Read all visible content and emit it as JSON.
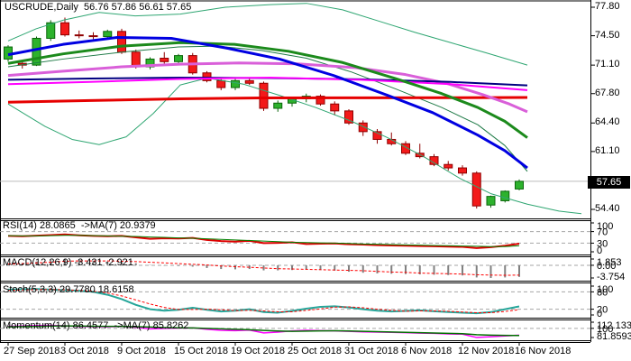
{
  "header": {
    "symbol_period": "USCRUDE,Daily",
    "ohlc_text": "56.76 57.86 56.61 57.65"
  },
  "axis": {
    "price_labels": [
      "77.80",
      "74.50",
      "71.10",
      "67.80",
      "64.40",
      "61.10",
      "54.40"
    ],
    "current_price_label": "57.65",
    "date_labels": [
      "27 Sep 2018",
      "3 Oct 2018",
      "9 Oct 2018",
      "15 Oct 2018",
      "19 Oct 2018",
      "25 Oct 2018",
      "31 Oct 2018",
      "6 Nov 2018",
      "12 Nov 2018",
      "16 Nov 2018"
    ]
  },
  "colors": {
    "candle_up_fill": "#2DB22D",
    "candle_up_stroke": "#0B660B",
    "candle_down_fill": "#F31A1A",
    "candle_down_stroke": "#8F0000",
    "grid_dash": "#A6A6A6",
    "current_price_line": "#BBBBBB",
    "border": "#000000",
    "tag_bg": "#000000",
    "tag_fg": "#FFFFFF"
  },
  "chart_data": {
    "type": "candlestick-with-indicators",
    "symbol": "USCRUDE",
    "timeframe": "Daily",
    "last_ohlc": {
      "open": 56.76,
      "high": 57.86,
      "low": 56.61,
      "close": 57.65
    },
    "current_price": 57.65,
    "y_axis_values": [
      77.8,
      74.5,
      71.1,
      67.8,
      64.4,
      61.1,
      54.4
    ],
    "candles": [
      [
        71.8,
        73.4,
        71.5,
        73.2
      ],
      [
        71.3,
        71.7,
        70.7,
        71.1
      ],
      [
        71.1,
        74.4,
        71.0,
        74.2
      ],
      [
        74.2,
        76.3,
        73.9,
        76.0
      ],
      [
        76.0,
        76.6,
        74.4,
        74.6
      ],
      [
        74.6,
        75.1,
        74.2,
        74.5
      ],
      [
        74.5,
        74.9,
        74.1,
        74.4
      ],
      [
        74.4,
        75.2,
        74.1,
        75.0
      ],
      [
        75.0,
        75.3,
        72.4,
        72.6
      ],
      [
        72.6,
        72.9,
        70.7,
        70.9
      ],
      [
        70.9,
        72.0,
        70.6,
        71.8
      ],
      [
        71.9,
        72.6,
        71.2,
        71.5
      ],
      [
        71.5,
        72.4,
        71.2,
        72.2
      ],
      [
        72.2,
        72.5,
        70.0,
        70.2
      ],
      [
        70.2,
        70.4,
        69.1,
        69.3
      ],
      [
        69.3,
        69.6,
        68.2,
        68.5
      ],
      [
        68.5,
        69.5,
        68.2,
        69.3
      ],
      [
        69.3,
        69.7,
        68.8,
        69.0
      ],
      [
        69.0,
        69.2,
        65.8,
        66.1
      ],
      [
        66.1,
        67.0,
        65.7,
        66.7
      ],
      [
        66.7,
        67.4,
        66.3,
        67.2
      ],
      [
        67.2,
        67.8,
        66.8,
        67.5
      ],
      [
        67.5,
        67.7,
        66.4,
        66.6
      ],
      [
        66.6,
        66.9,
        65.3,
        65.8
      ],
      [
        65.8,
        66.0,
        64.2,
        64.4
      ],
      [
        64.4,
        64.7,
        62.9,
        63.4
      ],
      [
        63.4,
        63.7,
        62.0,
        62.5
      ],
      [
        62.5,
        63.3,
        61.8,
        62.0
      ],
      [
        62.0,
        62.3,
        60.7,
        60.9
      ],
      [
        60.9,
        62.0,
        60.3,
        60.5
      ],
      [
        60.5,
        60.8,
        59.4,
        59.6
      ],
      [
        59.6,
        60.0,
        58.9,
        59.2
      ],
      [
        59.2,
        59.5,
        58.3,
        58.6
      ],
      [
        58.6,
        58.8,
        54.5,
        54.8
      ],
      [
        54.9,
        56.0,
        54.6,
        55.9
      ],
      [
        55.4,
        56.6,
        55.2,
        56.5
      ],
      [
        56.76,
        57.86,
        56.61,
        57.65
      ]
    ],
    "overlays": [
      {
        "name": "band-upper",
        "color": "#2FA672",
        "width": 1,
        "points": [
          [
            9,
            73.9
          ],
          [
            40,
            75.3
          ],
          [
            70,
            76.3
          ],
          [
            110,
            77.2
          ],
          [
            150,
            76.8
          ],
          [
            200,
            77.0
          ],
          [
            250,
            77.8
          ],
          [
            300,
            78.1
          ],
          [
            340,
            78.25
          ],
          [
            380,
            77.5
          ],
          [
            420,
            76.2
          ],
          [
            460,
            74.9
          ],
          [
            500,
            73.7
          ],
          [
            540,
            72.5
          ],
          [
            585,
            71.1
          ]
        ]
      },
      {
        "name": "band-lower",
        "color": "#2FA672",
        "width": 1,
        "points": [
          [
            9,
            66.6
          ],
          [
            50,
            64.0
          ],
          [
            80,
            62.5
          ],
          [
            110,
            61.9
          ],
          [
            140,
            62.8
          ],
          [
            170,
            65.5
          ],
          [
            200,
            68.8
          ],
          [
            230,
            69.6
          ],
          [
            270,
            68.9
          ],
          [
            310,
            67.6
          ],
          [
            350,
            66.2
          ],
          [
            390,
            64.6
          ],
          [
            430,
            62.7
          ],
          [
            470,
            60.5
          ],
          [
            510,
            58.0
          ],
          [
            545,
            56.2
          ],
          [
            585,
            55.0
          ],
          [
            620,
            54.2
          ],
          [
            645,
            53.9
          ]
        ]
      },
      {
        "name": "band-middle",
        "color": "#1E7A46",
        "width": 1,
        "points": [
          [
            9,
            70.9
          ],
          [
            70,
            71.8
          ],
          [
            135,
            72.6
          ],
          [
            198,
            73.2
          ],
          [
            240,
            73.3
          ],
          [
            290,
            72.8
          ],
          [
            340,
            71.9
          ],
          [
            390,
            70.3
          ],
          [
            440,
            68.3
          ],
          [
            490,
            66.2
          ],
          [
            530,
            64.2
          ],
          [
            560,
            61.8
          ],
          [
            585,
            58.8
          ]
        ]
      },
      {
        "name": "ma-red",
        "color": "#E60000",
        "width": 3,
        "points": [
          [
            9,
            66.8
          ],
          [
            100,
            67.0
          ],
          [
            200,
            67.2
          ],
          [
            290,
            67.3
          ],
          [
            400,
            67.32
          ],
          [
            500,
            67.33
          ],
          [
            585,
            67.35
          ]
        ]
      },
      {
        "name": "ma-orchid",
        "color": "#D95FD9",
        "width": 3,
        "points": [
          [
            9,
            69.9
          ],
          [
            70,
            70.4
          ],
          [
            135,
            70.9
          ],
          [
            200,
            71.2
          ],
          [
            265,
            71.35
          ],
          [
            330,
            71.25
          ],
          [
            395,
            70.8
          ],
          [
            450,
            70.0
          ],
          [
            495,
            69.0
          ],
          [
            535,
            67.7
          ],
          [
            565,
            66.6
          ],
          [
            585,
            65.7
          ]
        ]
      },
      {
        "name": "ma-navy",
        "color": "#000080",
        "width": 2,
        "points": [
          [
            9,
            69.4
          ],
          [
            100,
            69.55
          ],
          [
            200,
            69.65
          ],
          [
            300,
            69.6
          ],
          [
            400,
            69.45
          ],
          [
            500,
            69.15
          ],
          [
            585,
            68.75
          ]
        ]
      },
      {
        "name": "ma-magenta",
        "color": "#FF00FF",
        "width": 2,
        "points": [
          [
            9,
            68.9
          ],
          [
            100,
            69.15
          ],
          [
            200,
            69.5
          ],
          [
            300,
            69.65
          ],
          [
            400,
            69.4
          ],
          [
            500,
            68.9
          ],
          [
            585,
            68.2
          ]
        ]
      },
      {
        "name": "ma-green",
        "color": "#1C8A1C",
        "width": 3,
        "points": [
          [
            9,
            71.3
          ],
          [
            70,
            72.4
          ],
          [
            135,
            73.3
          ],
          [
            200,
            73.7
          ],
          [
            260,
            73.5
          ],
          [
            320,
            72.7
          ],
          [
            380,
            71.4
          ],
          [
            440,
            69.5
          ],
          [
            490,
            67.8
          ],
          [
            530,
            66.2
          ],
          [
            560,
            64.6
          ],
          [
            585,
            62.7
          ]
        ]
      },
      {
        "name": "ma-blue",
        "color": "#0000E1",
        "width": 3,
        "points": [
          [
            9,
            72.3
          ],
          [
            70,
            73.5
          ],
          [
            130,
            74.3
          ],
          [
            190,
            74.2
          ],
          [
            250,
            73.1
          ],
          [
            310,
            71.8
          ],
          [
            370,
            69.9
          ],
          [
            430,
            67.6
          ],
          [
            480,
            65.6
          ],
          [
            530,
            63.0
          ],
          [
            560,
            61.2
          ],
          [
            585,
            59.2
          ]
        ]
      }
    ],
    "panels": [
      {
        "id": "rsi",
        "label": "RSI(14) 28.0865  ->MA(7) 20.9379",
        "range": [
          0,
          100
        ],
        "levels": [
          70,
          30
        ],
        "axis_labels": [
          100,
          70,
          30,
          0
        ],
        "series": [
          {
            "name": "rsi-main",
            "color": "#DD0000",
            "width": 2,
            "dash": null,
            "values": [
              55,
              54,
              56,
              58,
              60,
              57,
              55,
              54,
              55,
              50,
              45,
              47,
              46,
              48,
              41,
              37,
              35,
              38,
              30,
              31,
              33,
              27,
              28,
              29,
              26,
              25,
              23,
              22,
              21,
              20,
              19,
              18,
              17,
              13,
              16,
              21,
              28
            ]
          },
          {
            "name": "rsi-ma",
            "color": "#008000",
            "width": 1,
            "dash": null,
            "values": [
              56,
              55,
              55,
              56,
              57,
              57,
              56,
              55,
              54,
              53,
              51,
              50,
              48,
              47,
              45,
              43,
              41,
              39,
              37,
              35,
              33,
              32,
              31,
              30,
              29,
              27,
              26,
              25,
              24,
              23,
              22,
              21,
              20,
              19,
              18,
              18,
              21
            ]
          }
        ]
      },
      {
        "id": "macd",
        "label": "MACD(12,26,9) -3.431 -2.921",
        "range": [
          -3.754,
          1.853
        ],
        "levels": [
          0
        ],
        "axis_labels": [
          1.853,
          0.0,
          -3.754
        ],
        "histogram": {
          "color": "#808080",
          "values": [
            0.5,
            0.7,
            1.1,
            1.5,
            1.85,
            1.6,
            1.3,
            1.1,
            1.0,
            0.6,
            0.1,
            -0.1,
            -0.2,
            -0.4,
            -0.8,
            -1.1,
            -1.2,
            -1.1,
            -1.5,
            -1.5,
            -1.4,
            -1.3,
            -1.4,
            -1.6,
            -1.9,
            -2.2,
            -2.4,
            -2.5,
            -2.6,
            -2.7,
            -2.8,
            -2.9,
            -3.0,
            -3.6,
            -3.75,
            -3.6,
            -3.43
          ]
        },
        "series": [
          {
            "name": "macd-signal",
            "color": "#FF0000",
            "width": 1,
            "dash": "3 2",
            "values": [
              0.4,
              0.5,
              0.7,
              0.9,
              1.2,
              1.3,
              1.3,
              1.3,
              1.2,
              1.1,
              0.9,
              0.7,
              0.5,
              0.3,
              0.1,
              -0.2,
              -0.4,
              -0.6,
              -0.8,
              -1.0,
              -1.1,
              -1.2,
              -1.3,
              -1.4,
              -1.5,
              -1.6,
              -1.8,
              -2.0,
              -2.1,
              -2.3,
              -2.4,
              -2.5,
              -2.6,
              -2.8,
              -2.9,
              -2.95,
              -2.92
            ]
          }
        ]
      },
      {
        "id": "stoch",
        "label": "Stoch(5,3,3) 29.7780 18.6158",
        "range": [
          0,
          100
        ],
        "levels": [
          80,
          20
        ],
        "axis_labels": [
          100,
          80,
          20,
          0
        ],
        "series": [
          {
            "name": "stoch-main",
            "color": "#26A69A",
            "width": 2,
            "dash": null,
            "values": [
              88,
              89,
              90,
              88,
              86,
              84,
              80,
              70,
              55,
              35,
              20,
              15,
              18,
              25,
              18,
              12,
              15,
              20,
              10,
              8,
              14,
              22,
              28,
              30,
              26,
              20,
              15,
              12,
              14,
              16,
              13,
              10,
              8,
              6,
              10,
              20,
              29.78
            ]
          },
          {
            "name": "stoch-signal",
            "color": "#FF0000",
            "width": 1,
            "dash": "3 2",
            "values": [
              85,
              87,
              88,
              88,
              87,
              85,
              82,
              76,
              66,
              52,
              38,
              26,
              19,
              19,
              20,
              18,
              15,
              16,
              14,
              11,
              11,
              16,
              21,
              27,
              28,
              25,
              20,
              16,
              13,
              14,
              14,
              13,
              10,
              8,
              8,
              12,
              18.62
            ]
          }
        ]
      },
      {
        "id": "momentum",
        "label": "Momentum(14) 86.4577  ->MA(7) 85.8262",
        "range": [
          81.8593,
          112.1335
        ],
        "levels": [
          100
        ],
        "axis_labels": [
          112.1335,
          100,
          81.8593
        ],
        "series": [
          {
            "name": "momentum-main",
            "color": "#FF00FF",
            "width": 1.5,
            "dash": null,
            "values": [
              104,
              104.5,
              105.5,
              106,
              105,
              104,
              103.5,
              103,
              104,
              102,
              99,
              100,
              100.5,
              101,
              98,
              96,
              95.5,
              96.5,
              91,
              92.5,
              95,
              96,
              95.5,
              95,
              94,
              93,
              92.5,
              92,
              91.5,
              90.5,
              90,
              89,
              88.5,
              82,
              83.5,
              85,
              86.46
            ]
          },
          {
            "name": "momentum-ma",
            "color": "#007000",
            "width": 1.5,
            "dash": null,
            "values": [
              103,
              103.5,
              104,
              104.5,
              104.8,
              104.5,
              104.2,
              103.8,
              103.8,
              103.3,
              102.5,
              101.5,
              101,
              100.8,
              100,
              99,
              98,
              97.2,
              95.8,
              94.8,
              94.2,
              94.5,
              95,
              95.2,
              94.8,
              94.2,
              93.5,
              92.8,
              92.2,
              91.5,
              90.8,
              90.2,
              89.5,
              87.5,
              86.5,
              86,
              85.83
            ]
          }
        ]
      }
    ]
  }
}
